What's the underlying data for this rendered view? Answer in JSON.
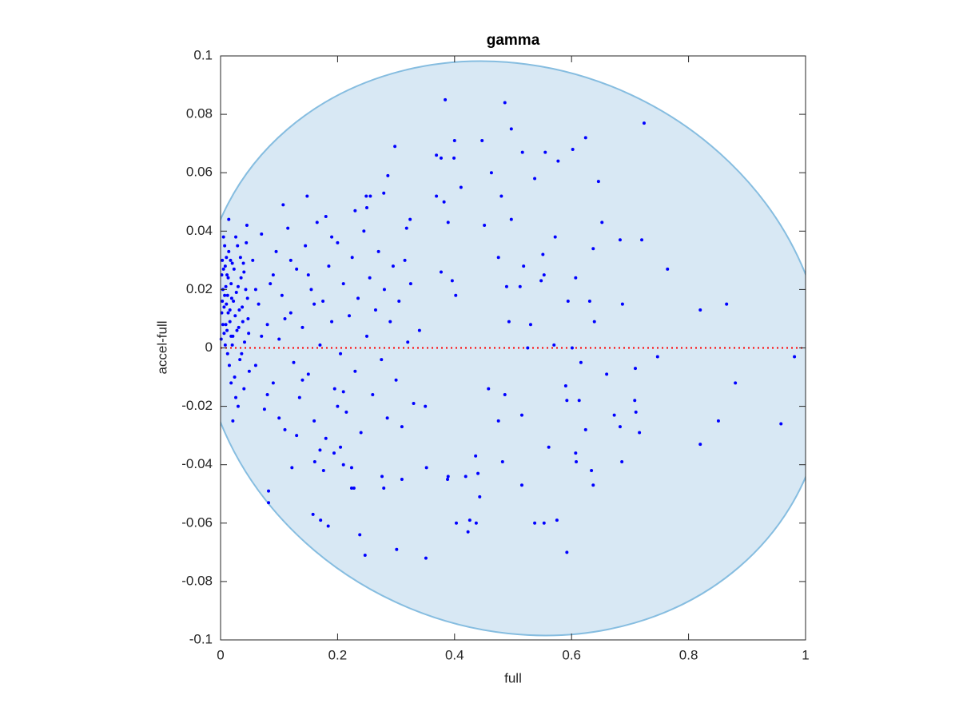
{
  "chart_data": {
    "type": "scatter",
    "title": "gamma",
    "x_label": "full",
    "y_label": "accel-full",
    "color": "#0000ff",
    "marker_size": 2,
    "xlim": [
      0,
      1
    ],
    "ylim": [
      -0.1,
      0.1
    ],
    "xticks": [
      0,
      0.2,
      0.4,
      0.6,
      0.8,
      1
    ],
    "yticks": [
      -0.1,
      -0.08,
      -0.06,
      -0.04,
      -0.02,
      0,
      0.02,
      0.04,
      0.06,
      0.08,
      0.1
    ],
    "reference_line": {
      "y": 0,
      "color": "#ff0000"
    },
    "region_color": "#d8e8f4",
    "region_edge": "#86bde0",
    "x": [
      0.384,
      0.486,
      0.497,
      0.624,
      0.724,
      0.4,
      0.447,
      0.298,
      0.369,
      0.377,
      0.399,
      0.516,
      0.555,
      0.602,
      0.577,
      0.463,
      0.537,
      0.646,
      0.286,
      0.249,
      0.256,
      0.279,
      0.148,
      0.107,
      0.369,
      0.382,
      0.411,
      0.48,
      0.324,
      0.318,
      0.389,
      0.497,
      0.451,
      0.652,
      0.572,
      0.637,
      0.683,
      0.72,
      0.764,
      0.551,
      0.475,
      0.518,
      0.377,
      0.396,
      0.402,
      0.489,
      0.512,
      0.553,
      0.548,
      0.607,
      0.687,
      0.631,
      0.82,
      0.865,
      0.594,
      0.53,
      0.493,
      0.639,
      0.525,
      0.57,
      0.601,
      0.747,
      0.981,
      0.616,
      0.66,
      0.709,
      0.88,
      0.458,
      0.486,
      0.59,
      0.613,
      0.592,
      0.708,
      0.71,
      0.673,
      0.716,
      0.683,
      0.851,
      0.958,
      0.515,
      0.475,
      0.624,
      0.561,
      0.607,
      0.608,
      0.634,
      0.637,
      0.686,
      0.82,
      0.482,
      0.515,
      0.436,
      0.44,
      0.443,
      0.419,
      0.389,
      0.388,
      0.403,
      0.426,
      0.423,
      0.437,
      0.537,
      0.553,
      0.575,
      0.592,
      0.352,
      0.31,
      0.279,
      0.276,
      0.301,
      0.351,
      0.247,
      0.238,
      0.224,
      0.228,
      0.184,
      0.171,
      0.158,
      0.082,
      0.082,
      0.122,
      0.161,
      0.176,
      0.21,
      0.224,
      0.205,
      0.194,
      0.002,
      0.004,
      0.006,
      0.008,
      0.01,
      0.012,
      0.014,
      0.016,
      0.018,
      0.02,
      0.003,
      0.005,
      0.007,
      0.009,
      0.011,
      0.013,
      0.015,
      0.017,
      0.019,
      0.021,
      0.023,
      0.025,
      0.027,
      0.029,
      0.031,
      0.033,
      0.035,
      0.037,
      0.039,
      0.041,
      0.043,
      0.045,
      0.047,
      0.049,
      0.001,
      0.002,
      0.003,
      0.004,
      0.005,
      0.006,
      0.007,
      0.008,
      0.009,
      0.01,
      0.011,
      0.012,
      0.013,
      0.014,
      0.016,
      0.018,
      0.02,
      0.022,
      0.024,
      0.026,
      0.028,
      0.03,
      0.032,
      0.034,
      0.036,
      0.038,
      0.04,
      0.044,
      0.046,
      0.048,
      0.026,
      0.021,
      0.03,
      0.018,
      0.04,
      0.055,
      0.06,
      0.065,
      0.07,
      0.075,
      0.08,
      0.085,
      0.09,
      0.095,
      0.1,
      0.105,
      0.11,
      0.115,
      0.12,
      0.125,
      0.13,
      0.135,
      0.14,
      0.145,
      0.15,
      0.155,
      0.16,
      0.165,
      0.17,
      0.175,
      0.18,
      0.185,
      0.19,
      0.195,
      0.2,
      0.205,
      0.21,
      0.215,
      0.22,
      0.225,
      0.23,
      0.235,
      0.24,
      0.245,
      0.25,
      0.255,
      0.26,
      0.265,
      0.27,
      0.275,
      0.28,
      0.285,
      0.29,
      0.295,
      0.3,
      0.305,
      0.31,
      0.315,
      0.32,
      0.325,
      0.33,
      0.34,
      0.35,
      0.07,
      0.09,
      0.11,
      0.13,
      0.15,
      0.17,
      0.19,
      0.21,
      0.06,
      0.08,
      0.1,
      0.12,
      0.14,
      0.16,
      0.18,
      0.2,
      0.23,
      0.25
    ],
    "values": [
      0.085,
      0.084,
      0.075,
      0.072,
      0.077,
      0.071,
      0.071,
      0.069,
      0.066,
      0.065,
      0.065,
      0.067,
      0.067,
      0.068,
      0.064,
      0.06,
      0.058,
      0.057,
      0.059,
      0.052,
      0.052,
      0.053,
      0.052,
      0.049,
      0.052,
      0.05,
      0.055,
      0.052,
      0.044,
      0.041,
      0.043,
      0.044,
      0.042,
      0.043,
      0.038,
      0.034,
      0.037,
      0.037,
      0.027,
      0.032,
      0.031,
      0.028,
      0.026,
      0.023,
      0.018,
      0.021,
      0.021,
      0.025,
      0.023,
      0.024,
      0.015,
      0.016,
      0.013,
      0.015,
      0.016,
      0.008,
      0.009,
      0.009,
      0,
      0.001,
      0,
      -0.003,
      -0.003,
      -0.005,
      -0.009,
      -0.007,
      -0.012,
      -0.014,
      -0.016,
      -0.013,
      -0.018,
      -0.018,
      -0.018,
      -0.022,
      -0.023,
      -0.029,
      -0.027,
      -0.025,
      -0.026,
      -0.023,
      -0.025,
      -0.028,
      -0.034,
      -0.036,
      -0.039,
      -0.042,
      -0.047,
      -0.039,
      -0.033,
      -0.039,
      -0.047,
      -0.037,
      -0.043,
      -0.051,
      -0.044,
      -0.044,
      -0.045,
      -0.06,
      -0.059,
      -0.063,
      -0.06,
      -0.06,
      -0.06,
      -0.059,
      -0.07,
      -0.041,
      -0.045,
      -0.048,
      -0.044,
      -0.069,
      -0.072,
      -0.071,
      -0.064,
      -0.048,
      -0.048,
      -0.061,
      -0.059,
      -0.057,
      -0.049,
      -0.053,
      -0.041,
      -0.039,
      -0.042,
      -0.04,
      -0.041,
      -0.034,
      -0.036,
      0.012,
      0.02,
      0.005,
      0.028,
      0.015,
      -0.002,
      0.033,
      0.009,
      0.022,
      0.001,
      0.03,
      0.038,
      0.018,
      0.008,
      0.025,
      0.012,
      -0.006,
      0.03,
      0.017,
      0.004,
      0.027,
      0.011,
      0.019,
      0.035,
      0.007,
      -0.004,
      0.024,
      0.014,
      0.029,
      0.002,
      0.02,
      0.042,
      0.01,
      -0.008,
      0.003,
      0.025,
      0.016,
      0.008,
      0.027,
      0.014,
      0.035,
      0.001,
      0.021,
      0.031,
      0.006,
      0.018,
      0.024,
      0.044,
      0.013,
      0.004,
      0.029,
      0.016,
      -0.01,
      0.038,
      0.006,
      0.021,
      0.013,
      0.031,
      -0.002,
      0.009,
      0.026,
      0.036,
      0.017,
      0.005,
      -0.017,
      -0.025,
      -0.02,
      -0.012,
      -0.014,
      0.03,
      -0.006,
      0.015,
      0.039,
      -0.021,
      0.008,
      0.022,
      -0.012,
      0.033,
      0.003,
      0.018,
      -0.028,
      0.041,
      0.012,
      -0.005,
      0.027,
      -0.017,
      0.007,
      0.035,
      -0.009,
      0.02,
      -0.025,
      0.043,
      0.001,
      0.016,
      -0.031,
      0.028,
      0.009,
      -0.014,
      0.036,
      -0.002,
      0.022,
      -0.022,
      0.011,
      0.031,
      -0.008,
      0.017,
      -0.029,
      0.04,
      0.004,
      0.024,
      -0.016,
      0.013,
      0.033,
      -0.004,
      0.02,
      -0.024,
      0.009,
      0.028,
      -0.011,
      0.016,
      -0.027,
      0.03,
      0.002,
      0.022,
      -0.019,
      0.006,
      -0.02,
      0.004,
      0.025,
      0.01,
      -0.03,
      0.025,
      -0.035,
      0.038,
      -0.015,
      0.02,
      -0.016,
      -0.024,
      0.03,
      -0.011,
      0.015,
      0.045,
      -0.02,
      0.047,
      0.048
    ]
  }
}
